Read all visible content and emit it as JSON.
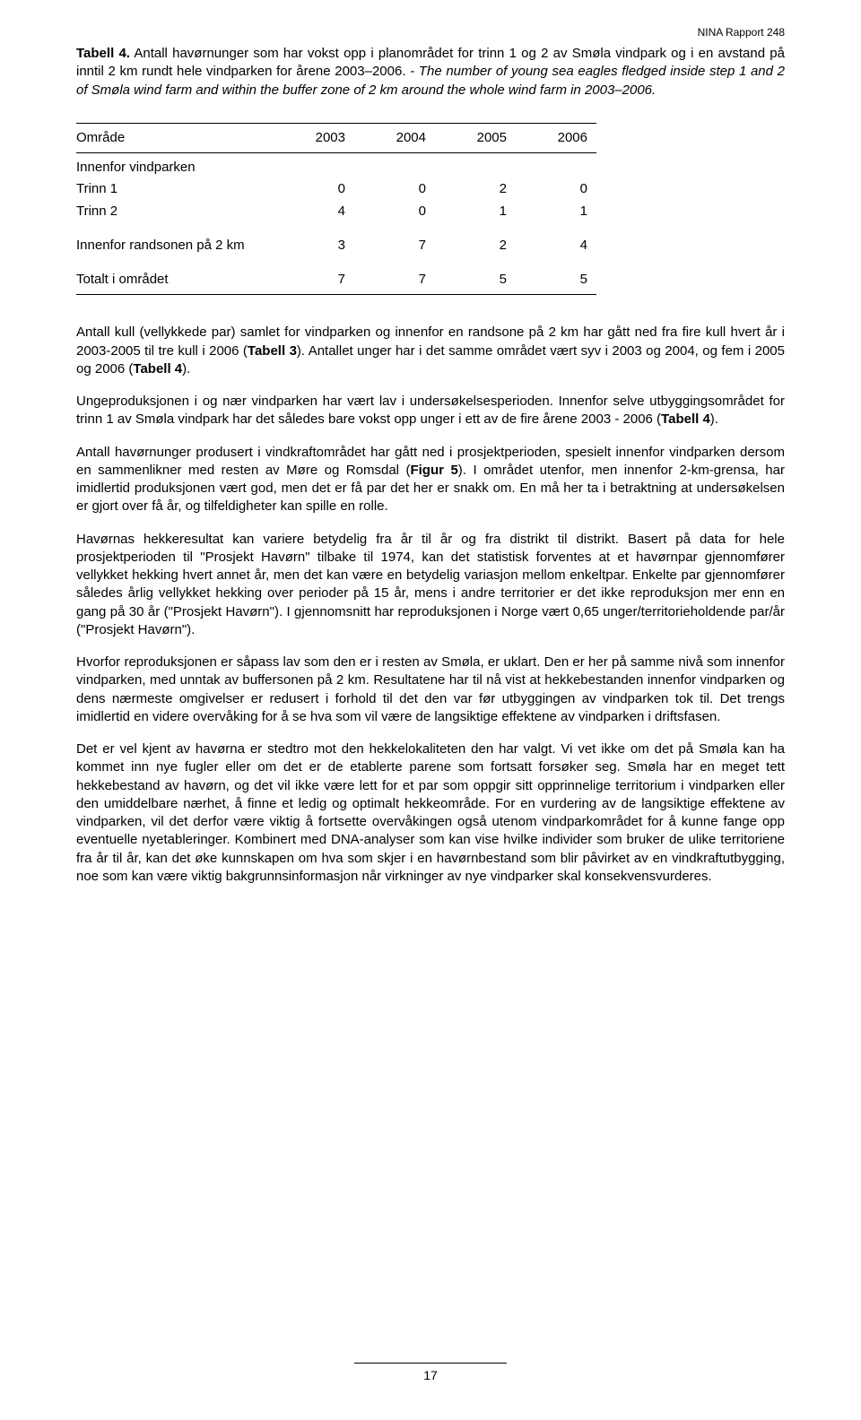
{
  "header": {
    "report_id": "NINA Rapport 248"
  },
  "caption": {
    "label": "Tabell 4.",
    "lead_normal": " Antall havørnunger som har vokst opp i planområdet for trinn 1 og 2 av Smøla vindpark og i en avstand på inntil 2 km rundt hele vindparken for årene 2003–2006. ",
    "italic": "- The number of young sea eagles fledged inside step 1 and 2 of Smøla wind farm and within the buffer zone of 2 km around the whole wind farm in 2003–2006."
  },
  "table": {
    "col0": "Område",
    "years": [
      "2003",
      "2004",
      "2005",
      "2006"
    ],
    "section_innenfor": "Innenfor vindparken",
    "rows": [
      {
        "label": "Trinn 1",
        "vals": [
          "0",
          "0",
          "2",
          "0"
        ]
      },
      {
        "label": "Trinn 2",
        "vals": [
          "4",
          "0",
          "1",
          "1"
        ]
      }
    ],
    "randsonen": {
      "label": "Innenfor randsonen på 2 km",
      "vals": [
        "3",
        "7",
        "2",
        "4"
      ]
    },
    "totalt": {
      "label": "Totalt i området",
      "vals": [
        "7",
        "7",
        "5",
        "5"
      ]
    }
  },
  "paras": {
    "p1a": "Antall kull (vellykkede par) samlet for vindparken og innenfor en randsone på 2 km har gått ned fra fire kull hvert år i 2003-2005 til tre kull i 2006 (",
    "p1b": "Tabell 3",
    "p1c": "). Antallet unger har i det samme området vært syv i 2003 og 2004, og fem i 2005 og 2006 (",
    "p1d": "Tabell 4",
    "p1e": ").",
    "p2a": "Ungeproduksjonen i og nær vindparken har vært lav i undersøkelsesperioden. Innenfor selve utbyggingsområdet for trinn 1 av Smøla vindpark har det således bare vokst opp unger i ett av de fire årene 2003 - 2006 (",
    "p2b": "Tabell 4",
    "p2c": ").",
    "p3a": "Antall havørnunger produsert i vindkraftområdet har gått ned i prosjektperioden, spesielt innenfor vindparken dersom en sammenlikner med resten av Møre og Romsdal (",
    "p3b": "Figur 5",
    "p3c": "). I området utenfor, men innenfor 2-km-grensa, har imidlertid produksjonen vært god, men det er få par det her er snakk om. En må her ta i betraktning at undersøkelsen er gjort over få år, og tilfeldigheter kan spille en rolle.",
    "p4": "Havørnas hekkeresultat kan variere betydelig fra år til år og fra distrikt til distrikt. Basert på data for hele prosjektperioden til \"Prosjekt Havørn\" tilbake til 1974, kan det statistisk forventes at et havørnpar gjennomfører vellykket hekking hvert annet år, men det kan være en betydelig variasjon mellom enkeltpar. Enkelte par gjennomfører således årlig vellykket hekking over perioder på 15 år, mens i andre territorier er det ikke reproduksjon mer enn en gang på 30 år (\"Prosjekt Havørn\"). I gjennomsnitt har reproduksjonen i Norge vært 0,65 unger/territorieholdende par/år (\"Prosjekt Havørn\").",
    "p5": "Hvorfor reproduksjonen er såpass lav som den er i resten av Smøla, er uklart. Den er her på samme nivå som innenfor vindparken, med unntak av buffersonen på 2 km. Resultatene har til nå vist at hekkebestanden innenfor vindparken og dens nærmeste omgivelser er redusert i forhold til det den var før utbyggingen av vindparken tok til. Det trengs imidlertid en videre overvåking for å se hva som vil være de langsiktige effektene av vindparken i driftsfasen.",
    "p6": "Det er vel kjent av havørna er stedtro mot den hekkelokaliteten den har valgt. Vi vet ikke om det på Smøla kan ha kommet inn nye fugler eller om det er de etablerte parene som fortsatt forsøker seg. Smøla har en meget tett hekkebestand av havørn, og det vil ikke være lett for et par som oppgir sitt opprinnelige territorium i vindparken eller den umiddelbare nærhet, å finne et ledig og optimalt hekkeområde. For en vurdering av de langsiktige effektene av vindparken, vil det derfor være viktig å fortsette overvåkingen også utenom vindparkområdet for å kunne fange opp eventuelle nyetableringer. Kombinert med DNA-analyser som kan vise hvilke individer som bruker de ulike territoriene fra år til år, kan det øke kunnskapen om hva som skjer i en havørnbestand som blir påvirket av en vindkraftutbygging, noe som kan være viktig bakgrunnsinformasjon når virkninger av nye vindparker skal konsekvensvurderes."
  },
  "page_number": "17"
}
